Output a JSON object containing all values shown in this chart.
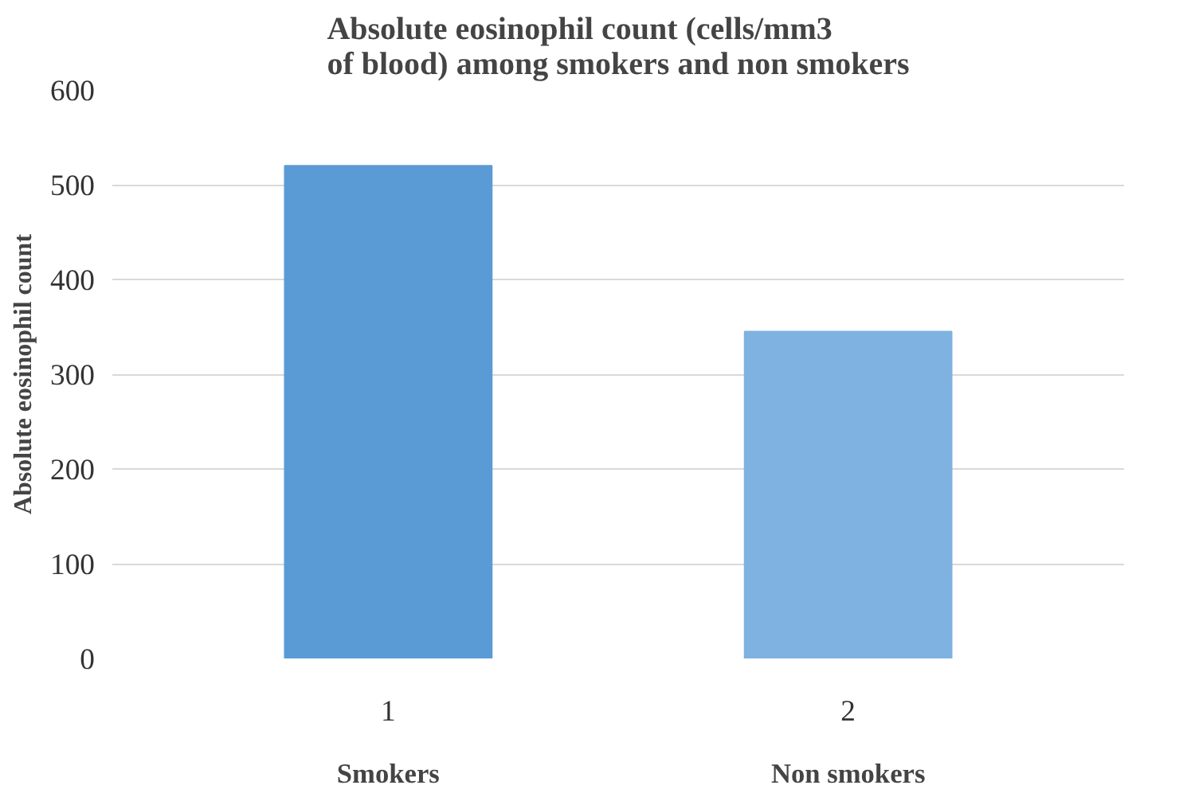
{
  "chart_data": {
    "type": "bar",
    "title": "Absolute eosinophil count (cells/mm3 of blood) among smokers and non smokers",
    "ylabel": "Absolute eosinophil count",
    "categories": [
      "1",
      "2"
    ],
    "values": [
      520,
      345
    ],
    "colors": [
      "#5b9bd5",
      "#7fb2e0"
    ],
    "ylim": [
      0,
      600
    ],
    "yticks": [
      0,
      100,
      200,
      300,
      400,
      500,
      600
    ],
    "grid": "y",
    "annotations": [
      "Smokers",
      "Non smokers"
    ]
  }
}
